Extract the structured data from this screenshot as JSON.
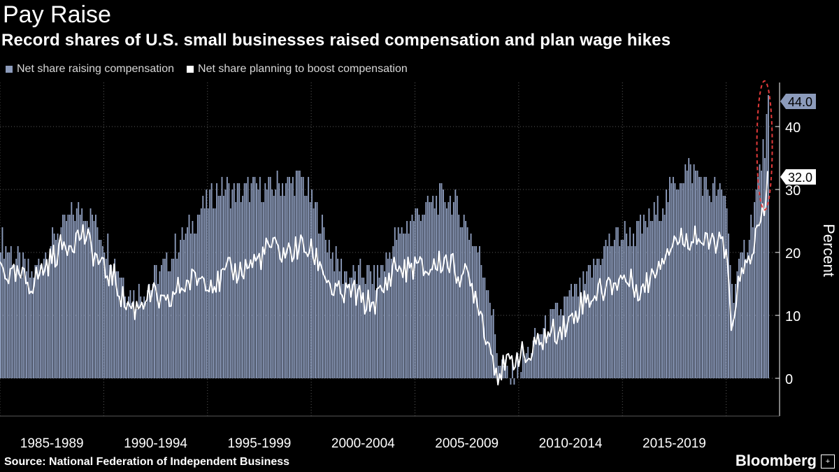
{
  "header": {
    "title": "Pay Raise",
    "subtitle": "Record shares of U.S. small businesses raised compensation and plan wage hikes"
  },
  "legend": {
    "items": [
      {
        "label": "Net share raising compensation",
        "color": "#8c9bbb"
      },
      {
        "label": "Net share planning to boost compensation",
        "color": "#ffffff"
      }
    ]
  },
  "footer": {
    "source": "Source: National Federation of Independent Business",
    "brand": "Bloomberg",
    "brand_icon": "plus-square-icon"
  },
  "chart_data": {
    "type": "bar",
    "title": "Pay Raise",
    "subtitle": "Record shares of U.S. small businesses raised compensation and plan wage hikes",
    "ylabel": "Percent",
    "ylim": [
      -6,
      47
    ],
    "y_ticks": [
      0,
      10,
      20,
      30,
      40
    ],
    "x_range": [
      1985.0,
      2022.0
    ],
    "x_tick_labels": [
      "1985-1989",
      "1990-1994",
      "1995-1999",
      "2000-2004",
      "2005-2009",
      "2010-2014",
      "2015-2019"
    ],
    "x_period_bounds": [
      1985,
      1990,
      1995,
      2000,
      2005,
      2010,
      2015,
      2020
    ],
    "grid": true,
    "legend_position": "top-left",
    "last_value_labels": [
      {
        "value": "44.0",
        "series": "Net share raising compensation"
      },
      {
        "value": "32.0",
        "series": "Net share planning to boost compensation"
      }
    ],
    "annotation": "red dashed ellipse around latest readings",
    "series": [
      {
        "name": "Net share raising compensation",
        "color": "#8c9bbb",
        "style": "bars",
        "points": [
          [
            1985.0,
            22
          ],
          [
            1985.5,
            20
          ],
          [
            1986.0,
            18
          ],
          [
            1986.5,
            16
          ],
          [
            1987.0,
            19
          ],
          [
            1987.5,
            22
          ],
          [
            1988.0,
            24
          ],
          [
            1988.5,
            26
          ],
          [
            1989.0,
            27
          ],
          [
            1989.5,
            25
          ],
          [
            1990.0,
            22
          ],
          [
            1990.5,
            19
          ],
          [
            1991.0,
            15
          ],
          [
            1991.5,
            13
          ],
          [
            1992.0,
            14
          ],
          [
            1992.5,
            16
          ],
          [
            1993.0,
            18
          ],
          [
            1993.5,
            21
          ],
          [
            1994.0,
            23
          ],
          [
            1994.5,
            26
          ],
          [
            1995.0,
            28
          ],
          [
            1995.5,
            30
          ],
          [
            1996.0,
            30
          ],
          [
            1996.5,
            29
          ],
          [
            1997.0,
            30
          ],
          [
            1997.5,
            30
          ],
          [
            1998.0,
            30
          ],
          [
            1998.5,
            31
          ],
          [
            1999.0,
            31
          ],
          [
            1999.5,
            32
          ],
          [
            2000.0,
            28
          ],
          [
            2000.5,
            24
          ],
          [
            2001.0,
            20
          ],
          [
            2001.5,
            17
          ],
          [
            2002.0,
            16
          ],
          [
            2002.5,
            17
          ],
          [
            2003.0,
            16
          ],
          [
            2003.5,
            18
          ],
          [
            2004.0,
            22
          ],
          [
            2004.5,
            24
          ],
          [
            2005.0,
            26
          ],
          [
            2005.5,
            27
          ],
          [
            2006.0,
            28
          ],
          [
            2006.5,
            29
          ],
          [
            2007.0,
            27
          ],
          [
            2007.5,
            24
          ],
          [
            2008.0,
            20
          ],
          [
            2008.5,
            15
          ],
          [
            2009.0,
            3
          ],
          [
            2009.5,
            0
          ],
          [
            2010.0,
            2
          ],
          [
            2010.5,
            4
          ],
          [
            2011.0,
            7
          ],
          [
            2011.5,
            9
          ],
          [
            2012.0,
            11
          ],
          [
            2012.5,
            13
          ],
          [
            2013.0,
            14
          ],
          [
            2013.5,
            17
          ],
          [
            2014.0,
            20
          ],
          [
            2014.5,
            22
          ],
          [
            2015.0,
            23
          ],
          [
            2015.5,
            23
          ],
          [
            2016.0,
            24
          ],
          [
            2016.5,
            26
          ],
          [
            2017.0,
            28
          ],
          [
            2017.5,
            31
          ],
          [
            2018.0,
            33
          ],
          [
            2018.5,
            33
          ],
          [
            2019.0,
            30
          ],
          [
            2019.5,
            30
          ],
          [
            2020.0,
            28
          ],
          [
            2020.25,
            14
          ],
          [
            2020.5,
            16
          ],
          [
            2021.0,
            22
          ],
          [
            2021.5,
            31
          ],
          [
            2021.9,
            39
          ],
          [
            2022.0,
            44
          ]
        ]
      },
      {
        "name": "Net share planning to boost compensation",
        "color": "#ffffff",
        "style": "line",
        "points": [
          [
            1985.0,
            18
          ],
          [
            1985.5,
            16
          ],
          [
            1986.0,
            16
          ],
          [
            1986.5,
            15
          ],
          [
            1987.0,
            17
          ],
          [
            1987.5,
            19
          ],
          [
            1988.0,
            21
          ],
          [
            1988.5,
            22
          ],
          [
            1989.0,
            23
          ],
          [
            1989.5,
            20
          ],
          [
            1990.0,
            17
          ],
          [
            1990.5,
            16
          ],
          [
            1991.0,
            12
          ],
          [
            1991.5,
            11
          ],
          [
            1992.0,
            13
          ],
          [
            1992.5,
            13
          ],
          [
            1993.0,
            11
          ],
          [
            1993.5,
            14
          ],
          [
            1994.0,
            15
          ],
          [
            1994.5,
            16
          ],
          [
            1995.0,
            16
          ],
          [
            1995.5,
            15
          ],
          [
            1996.0,
            17
          ],
          [
            1996.5,
            17
          ],
          [
            1997.0,
            18
          ],
          [
            1997.5,
            19
          ],
          [
            1998.0,
            21
          ],
          [
            1998.5,
            20
          ],
          [
            1999.0,
            20
          ],
          [
            1999.5,
            21
          ],
          [
            2000.0,
            20
          ],
          [
            2000.5,
            18
          ],
          [
            2001.0,
            14
          ],
          [
            2001.5,
            13
          ],
          [
            2002.0,
            14
          ],
          [
            2002.5,
            12
          ],
          [
            2003.0,
            12
          ],
          [
            2003.5,
            14
          ],
          [
            2004.0,
            18
          ],
          [
            2004.5,
            17
          ],
          [
            2005.0,
            18
          ],
          [
            2005.5,
            17
          ],
          [
            2006.0,
            18
          ],
          [
            2006.5,
            19
          ],
          [
            2007.0,
            17
          ],
          [
            2007.5,
            16
          ],
          [
            2008.0,
            13
          ],
          [
            2008.5,
            6
          ],
          [
            2009.0,
            1
          ],
          [
            2009.5,
            2
          ],
          [
            2010.0,
            4
          ],
          [
            2010.5,
            3
          ],
          [
            2011.0,
            6
          ],
          [
            2011.5,
            7
          ],
          [
            2012.0,
            8
          ],
          [
            2012.5,
            9
          ],
          [
            2013.0,
            12
          ],
          [
            2013.5,
            13
          ],
          [
            2014.0,
            14
          ],
          [
            2014.5,
            15
          ],
          [
            2015.0,
            16
          ],
          [
            2015.5,
            15
          ],
          [
            2016.0,
            14
          ],
          [
            2016.5,
            17
          ],
          [
            2017.0,
            20
          ],
          [
            2017.5,
            22
          ],
          [
            2018.0,
            22
          ],
          [
            2018.5,
            23
          ],
          [
            2019.0,
            21
          ],
          [
            2019.5,
            22
          ],
          [
            2020.0,
            20
          ],
          [
            2020.25,
            7
          ],
          [
            2020.5,
            14
          ],
          [
            2021.0,
            18
          ],
          [
            2021.5,
            23
          ],
          [
            2021.9,
            27
          ],
          [
            2022.0,
            32
          ]
        ]
      }
    ]
  }
}
